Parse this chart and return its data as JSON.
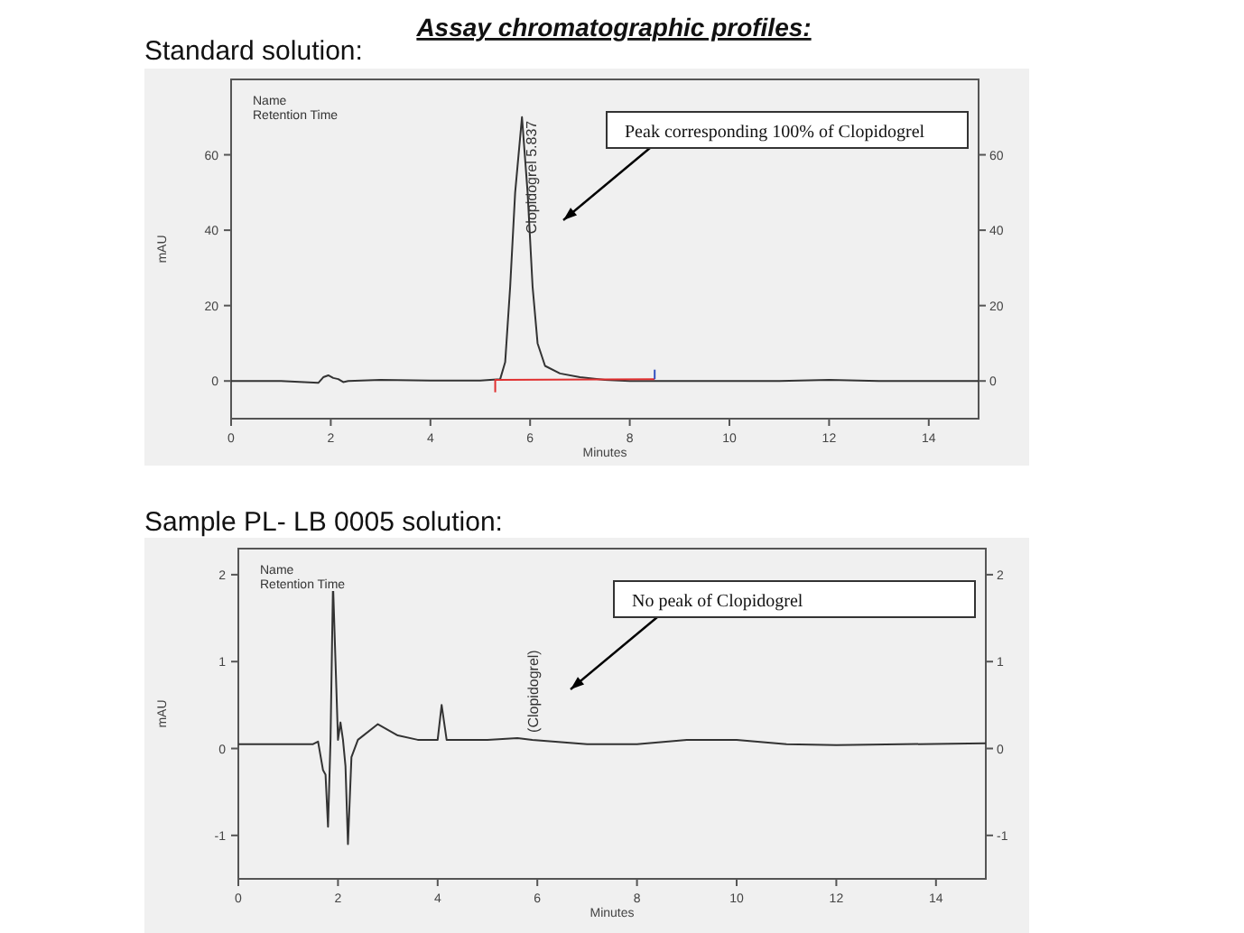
{
  "chart_data": [
    {
      "type": "line",
      "title": "Assay chromatographic profiles:",
      "subtitle": "Standard solution:",
      "xlabel": "Minutes",
      "ylabel": "mAU",
      "xlim": [
        0,
        15
      ],
      "xticks": [
        0,
        2,
        4,
        6,
        8,
        10,
        12,
        14
      ],
      "ylim": [
        -10,
        80
      ],
      "yticks": [
        0,
        20,
        40,
        60
      ],
      "y2lim": [
        -10,
        80
      ],
      "y2ticks": [
        0,
        20,
        40,
        60
      ],
      "annotations": [
        "Name",
        "Retention Time",
        "Peak corresponding 100% of  Clopidogrel"
      ],
      "series": [
        {
          "color": "#333333",
          "x": [
            0,
            1,
            1.75,
            1.85,
            1.95,
            2.05,
            2.15,
            2.25,
            2.35,
            3,
            4,
            5,
            5.4,
            5.5,
            5.6,
            5.7,
            5.837,
            5.95,
            6.05,
            6.15,
            6.3,
            6.6,
            7,
            7.5,
            8,
            9,
            10,
            11,
            12,
            13,
            15
          ],
          "values": [
            0,
            0,
            -0.5,
            1,
            1.5,
            0.8,
            0.5,
            -0.3,
            0,
            0.3,
            0.1,
            0.1,
            0.5,
            5,
            25,
            50,
            70,
            50,
            25,
            10,
            4,
            2,
            1,
            0.3,
            0,
            0,
            0,
            0,
            0.3,
            0,
            0
          ],
          "value_labels": [
            null,
            null,
            null,
            null,
            null,
            null,
            null,
            null,
            null,
            null,
            null,
            null,
            null,
            null,
            null,
            null,
            "Clopidogrel 5.837",
            null,
            null,
            null,
            null,
            null,
            null,
            null,
            null,
            null,
            null,
            null,
            null,
            null,
            null
          ]
        },
        {
          "color": "#e03030",
          "x": [
            5.3,
            5.3,
            8.5
          ],
          "values": [
            -3,
            0.3,
            0.5
          ]
        },
        {
          "color": "#3050c0",
          "x": [
            8.5,
            8.5
          ],
          "values": [
            0.5,
            3
          ]
        }
      ]
    },
    {
      "type": "line",
      "subtitle": "Sample PL- LB 0005 solution:",
      "xlabel": "Minutes",
      "ylabel": "mAU",
      "xlim": [
        0,
        15
      ],
      "xticks": [
        0,
        2,
        4,
        6,
        8,
        10,
        12,
        14
      ],
      "ylim": [
        -1.5,
        2.3
      ],
      "yticks": [
        -1,
        0,
        1,
        2
      ],
      "y2lim": [
        -1.5,
        2.3
      ],
      "y2ticks": [
        -1,
        0,
        1,
        2
      ],
      "annotations": [
        "Name",
        "Retention Time",
        "No peak of  Clopidogrel"
      ],
      "series": [
        {
          "color": "#333333",
          "x": [
            0,
            1.5,
            1.6,
            1.7,
            1.75,
            1.8,
            1.85,
            1.9,
            1.95,
            2,
            2.05,
            2.1,
            2.15,
            2.2,
            2.27,
            2.4,
            2.8,
            3.2,
            3.6,
            4,
            4.08,
            4.18,
            5,
            5.6,
            5.9,
            7,
            8,
            9,
            10,
            11,
            12,
            15
          ],
          "values": [
            0.05,
            0.05,
            0.08,
            -0.25,
            -0.3,
            -0.9,
            0.1,
            1.9,
            1,
            0.1,
            0.3,
            0.1,
            -0.2,
            -1.1,
            -0.1,
            0.1,
            0.28,
            0.15,
            0.1,
            0.1,
            0.5,
            0.1,
            0.1,
            0.12,
            0.1,
            0.05,
            0.05,
            0.1,
            0.1,
            0.05,
            0.04,
            0.06
          ],
          "value_labels": [
            null,
            null,
            null,
            null,
            null,
            null,
            null,
            null,
            null,
            null,
            null,
            null,
            null,
            null,
            null,
            null,
            null,
            null,
            null,
            null,
            null,
            null,
            null,
            null,
            "(Clopidogrel)",
            null,
            null,
            null,
            null,
            null,
            null,
            null
          ]
        }
      ]
    }
  ]
}
